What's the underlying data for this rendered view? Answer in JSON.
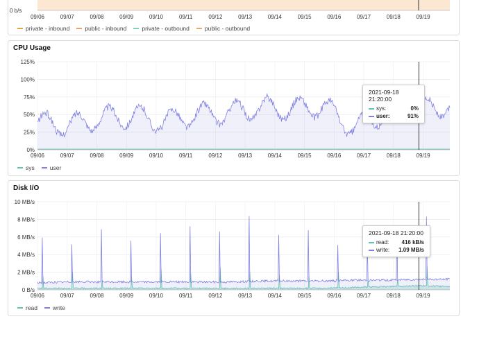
{
  "network": {
    "y_bottom_label": "0 b/s",
    "x_ticks": [
      "09/06",
      "09/07",
      "09/08",
      "09/09",
      "09/10",
      "09/11",
      "09/12",
      "09/13",
      "09/14",
      "09/15",
      "09/16",
      "09/17",
      "09/18",
      "09/19"
    ],
    "legend": [
      {
        "label": "private - inbound",
        "color": "#e0a050"
      },
      {
        "label": "public - inbound",
        "color": "#e8a070"
      },
      {
        "label": "private - outbound",
        "color": "#7fd0c0"
      },
      {
        "label": "public - outbound",
        "color": "#f0a860"
      }
    ]
  },
  "cpu": {
    "title": "CPU Usage",
    "y_ticks": [
      "125%",
      "100%",
      "75%",
      "50%",
      "25%",
      "0%"
    ],
    "x_ticks": [
      "09/06",
      "09/07",
      "09/08",
      "09/09",
      "09/10",
      "09/11",
      "09/12",
      "09/13",
      "09/14",
      "09/15",
      "09/16",
      "09/17",
      "09/18",
      "09/19"
    ],
    "legend": [
      {
        "label": "sys",
        "color": "#5fc4b0"
      },
      {
        "label": "user",
        "color": "#8080e0"
      }
    ],
    "tooltip": {
      "time": "2021-09-18 21:20:00",
      "rows": [
        {
          "label": "sys:",
          "value": "0%",
          "color": "#5fc4b0"
        },
        {
          "label": "user:",
          "value": "91%",
          "color": "#8080e0"
        }
      ]
    }
  },
  "disk": {
    "title": "Disk I/O",
    "y_ticks": [
      "10 MB/s",
      "8 MB/s",
      "6 MB/s",
      "4 MB/s",
      "2 MB/s",
      "0 B/s"
    ],
    "x_ticks": [
      "09/06",
      "09/07",
      "09/08",
      "09/09",
      "09/10",
      "09/11",
      "09/12",
      "09/13",
      "09/14",
      "09/15",
      "09/16",
      "09/17",
      "09/18",
      "09/19"
    ],
    "legend": [
      {
        "label": "read",
        "color": "#5fc4b0"
      },
      {
        "label": "write",
        "color": "#8080e0"
      }
    ],
    "tooltip": {
      "time": "2021-09-18 21:20:00",
      "rows": [
        {
          "label": "read:",
          "value": "416 kB/s",
          "color": "#5fc4b0"
        },
        {
          "label": "write:",
          "value": "1.09 MB/s",
          "color": "#8080e0"
        }
      ]
    }
  },
  "chart_data": [
    {
      "type": "area",
      "title": "CPU Usage",
      "categories": [
        "09/06",
        "09/07",
        "09/08",
        "09/09",
        "09/10",
        "09/11",
        "09/12",
        "09/13",
        "09/14",
        "09/15",
        "09/16",
        "09/17",
        "09/18",
        "09/19"
      ],
      "ylim": [
        0,
        125
      ],
      "series": [
        {
          "name": "sys",
          "values": [
            1,
            1,
            1,
            1,
            1,
            1,
            1,
            1,
            1,
            1,
            1,
            1,
            1,
            1
          ]
        },
        {
          "name": "user",
          "values": [
            38,
            35,
            45,
            48,
            40,
            50,
            52,
            60,
            58,
            62,
            30,
            55,
            58,
            62
          ]
        }
      ]
    },
    {
      "type": "area",
      "title": "Disk I/O",
      "categories": [
        "09/06",
        "09/07",
        "09/08",
        "09/09",
        "09/10",
        "09/11",
        "09/12",
        "09/13",
        "09/14",
        "09/15",
        "09/16",
        "09/17",
        "09/18",
        "09/19"
      ],
      "ylim": [
        0,
        10
      ],
      "series": [
        {
          "name": "read",
          "values": [
            0.1,
            0.1,
            0.1,
            0.1,
            0.1,
            0.1,
            0.1,
            0.1,
            0.1,
            0.1,
            0.2,
            0.3,
            0.4,
            0.3
          ]
        },
        {
          "name": "write",
          "values": [
            0.8,
            0.9,
            0.9,
            0.9,
            0.9,
            0.9,
            0.9,
            1.0,
            1.0,
            1.0,
            1.1,
            1.1,
            1.2,
            1.2
          ]
        }
      ]
    }
  ]
}
